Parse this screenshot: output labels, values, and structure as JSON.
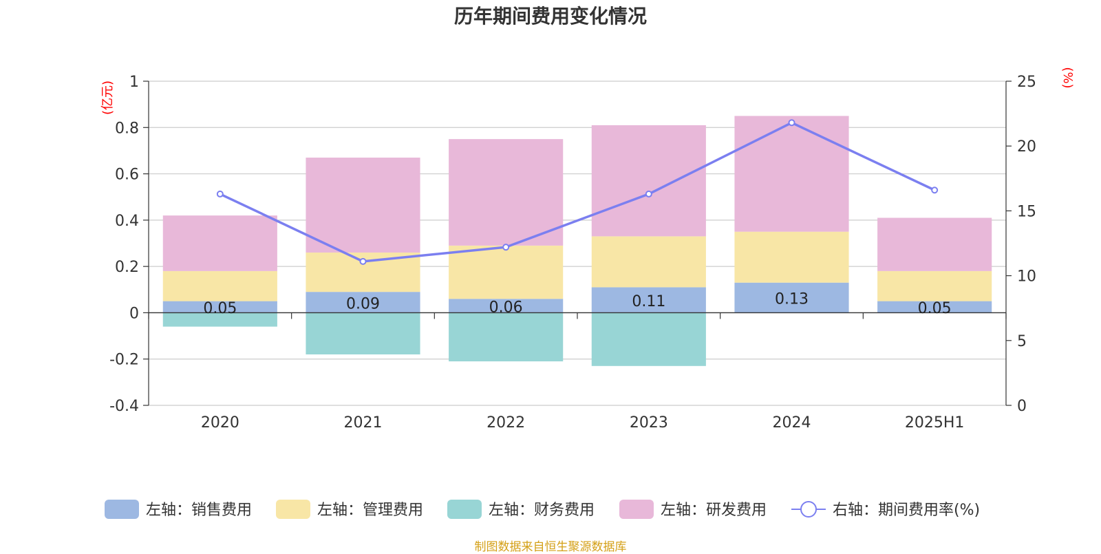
{
  "chart_data": {
    "type": "bar",
    "title": "历年期间费用变化情况",
    "categories": [
      "2020",
      "2021",
      "2022",
      "2023",
      "2024",
      "2025H1"
    ],
    "left_axis": {
      "unit_label": "(亿元)",
      "ylim": [
        -0.4,
        1
      ],
      "ticks": [
        "1",
        "0.8",
        "0.6",
        "0.4",
        "0.2",
        "0",
        "-0.2",
        "-0.4"
      ]
    },
    "right_axis": {
      "unit_label": "(%)",
      "ylim": [
        0,
        25
      ],
      "ticks": [
        "25",
        "20",
        "15",
        "10",
        "5",
        "0"
      ]
    },
    "series": [
      {
        "name": "左轴：销售费用",
        "type": "bar",
        "stack": true,
        "color": "#9db8e2",
        "values": [
          0.05,
          0.09,
          0.06,
          0.11,
          0.13,
          0.05
        ],
        "labels": [
          "0.05",
          "0.09",
          "0.06",
          "0.11",
          "0.13",
          "0.05"
        ]
      },
      {
        "name": "左轴：管理费用",
        "type": "bar",
        "stack": true,
        "color": "#f8e6a6",
        "values": [
          0.13,
          0.17,
          0.23,
          0.22,
          0.22,
          0.13
        ]
      },
      {
        "name": "左轴：财务费用",
        "type": "bar",
        "stack": true,
        "color": "#98d5d5",
        "values": [
          -0.06,
          -0.18,
          -0.21,
          -0.23,
          0.0,
          0.0
        ]
      },
      {
        "name": "左轴：研发费用",
        "type": "bar",
        "stack": true,
        "color": "#e8b8d9",
        "values": [
          0.24,
          0.41,
          0.46,
          0.48,
          0.5,
          0.23
        ]
      },
      {
        "name": "右轴：期间费用率(%)",
        "type": "line",
        "axis": "right",
        "color": "#7b7ff0",
        "values": [
          16.3,
          11.1,
          12.2,
          16.3,
          21.8,
          16.6
        ]
      }
    ],
    "grid": true,
    "legend_position": "bottom"
  },
  "source": "制图数据来自恒生聚源数据库"
}
